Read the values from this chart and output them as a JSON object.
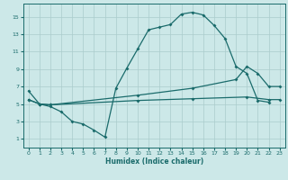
{
  "xlabel": "Humidex (Indice chaleur)",
  "bg_color": "#cce8e8",
  "grid_color": "#aacccc",
  "line_color": "#1a6b6b",
  "xlim": [
    -0.5,
    23.5
  ],
  "ylim": [
    0,
    16.5
  ],
  "xticks": [
    0,
    1,
    2,
    3,
    4,
    5,
    6,
    7,
    8,
    9,
    10,
    11,
    12,
    13,
    14,
    15,
    16,
    17,
    18,
    19,
    20,
    21,
    22,
    23
  ],
  "yticks": [
    1,
    3,
    5,
    7,
    9,
    11,
    13,
    15
  ],
  "line1_x": [
    0,
    1,
    2,
    3,
    4,
    5,
    6,
    7,
    8,
    9,
    10,
    11,
    12,
    13,
    14,
    15,
    16,
    17,
    18,
    19,
    20,
    21,
    22
  ],
  "line1_y": [
    6.5,
    5.0,
    4.7,
    4.1,
    3.0,
    2.7,
    2.0,
    1.2,
    6.8,
    9.1,
    11.3,
    13.5,
    13.8,
    14.1,
    15.3,
    15.5,
    15.2,
    14.0,
    12.5,
    9.3,
    8.5,
    5.4,
    5.2
  ],
  "line2_x": [
    0,
    1,
    2,
    10,
    15,
    19,
    20,
    21,
    22,
    23
  ],
  "line2_y": [
    5.5,
    5.0,
    4.9,
    6.0,
    6.8,
    7.8,
    9.3,
    8.5,
    7.0,
    7.0
  ],
  "line3_x": [
    0,
    1,
    2,
    10,
    15,
    20,
    22,
    23
  ],
  "line3_y": [
    5.5,
    5.0,
    4.9,
    5.4,
    5.6,
    5.8,
    5.5,
    5.5
  ]
}
